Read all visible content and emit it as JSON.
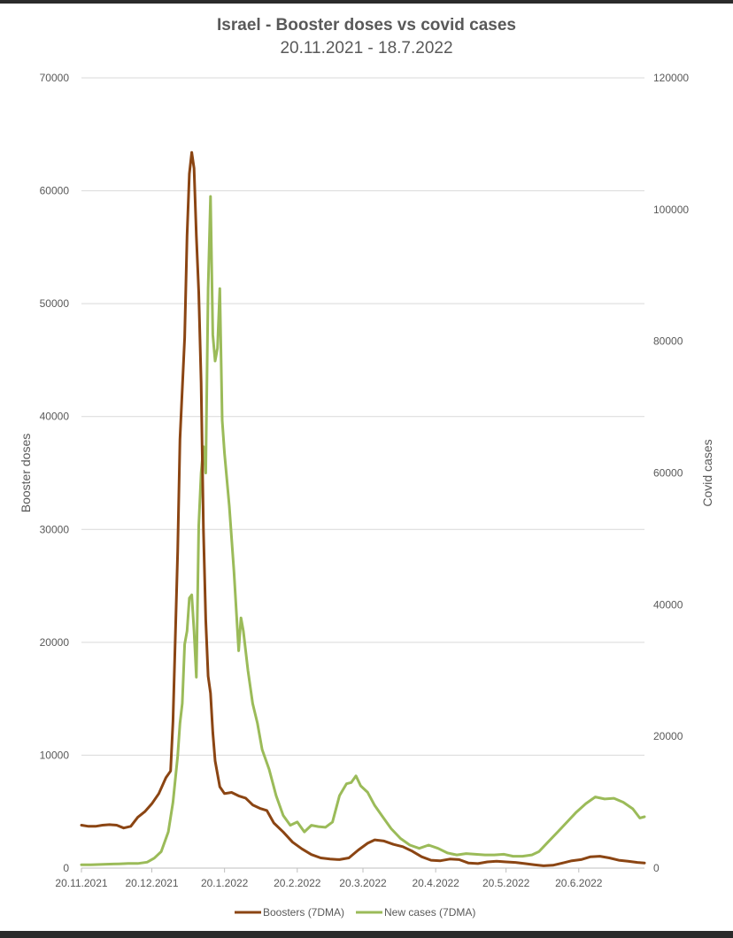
{
  "chart_data": {
    "type": "line",
    "title": "Israel - Booster doses vs covid cases",
    "subtitle": "20.11.2021 - 18.7.2022",
    "ylabel": "Booster doses",
    "y2label": "Covid cases",
    "ylim": [
      0,
      70000
    ],
    "y2lim": [
      0,
      120000
    ],
    "yticks": [
      "0",
      "10000",
      "20000",
      "30000",
      "40000",
      "50000",
      "60000",
      "70000"
    ],
    "y2ticks": [
      "0",
      "20000",
      "40000",
      "60000",
      "80000",
      "100000",
      "120000"
    ],
    "xrange": [
      "2021-11-20",
      "2022-07-18"
    ],
    "xticks": [
      {
        "date": "2021-11-20",
        "label": "20.11.2021"
      },
      {
        "date": "2021-12-20",
        "label": "20.12.2021"
      },
      {
        "date": "2022-01-20",
        "label": "20.1.2022"
      },
      {
        "date": "2022-02-20",
        "label": "20.2.2022"
      },
      {
        "date": "2022-03-20",
        "label": "20.3.2022"
      },
      {
        "date": "2022-04-20",
        "label": "20.4.2022"
      },
      {
        "date": "2022-05-20",
        "label": "20.5.2022"
      },
      {
        "date": "2022-06-20",
        "label": "20.6.2022"
      }
    ],
    "grid": true,
    "legend_position": "bottom",
    "series": [
      {
        "name": "Boosters (7DMA)",
        "axis": "left",
        "color": "#8B4513",
        "points": [
          [
            "2021-11-20",
            3800
          ],
          [
            "2021-11-23",
            3700
          ],
          [
            "2021-11-26",
            3700
          ],
          [
            "2021-11-29",
            3800
          ],
          [
            "2021-12-02",
            3850
          ],
          [
            "2021-12-05",
            3800
          ],
          [
            "2021-12-08",
            3550
          ],
          [
            "2021-12-11",
            3700
          ],
          [
            "2021-12-14",
            4500
          ],
          [
            "2021-12-17",
            5000
          ],
          [
            "2021-12-20",
            5700
          ],
          [
            "2021-12-23",
            6600
          ],
          [
            "2021-12-26",
            8000
          ],
          [
            "2021-12-28",
            8600
          ],
          [
            "2021-12-29",
            13000
          ],
          [
            "2021-12-31",
            28000
          ],
          [
            "2022-01-01",
            38000
          ],
          [
            "2022-01-03",
            47000
          ],
          [
            "2022-01-04",
            56000
          ],
          [
            "2022-01-05",
            61500
          ],
          [
            "2022-01-06",
            63400
          ],
          [
            "2022-01-07",
            62000
          ],
          [
            "2022-01-08",
            56000
          ],
          [
            "2022-01-09",
            51000
          ],
          [
            "2022-01-10",
            43000
          ],
          [
            "2022-01-11",
            30000
          ],
          [
            "2022-01-12",
            22000
          ],
          [
            "2022-01-13",
            17000
          ],
          [
            "2022-01-14",
            15500
          ],
          [
            "2022-01-15",
            12000
          ],
          [
            "2022-01-16",
            9500
          ],
          [
            "2022-01-18",
            7200
          ],
          [
            "2022-01-20",
            6600
          ],
          [
            "2022-01-23",
            6700
          ],
          [
            "2022-01-26",
            6400
          ],
          [
            "2022-01-29",
            6200
          ],
          [
            "2022-02-01",
            5600
          ],
          [
            "2022-02-04",
            5300
          ],
          [
            "2022-02-07",
            5100
          ],
          [
            "2022-02-10",
            4000
          ],
          [
            "2022-02-14",
            3200
          ],
          [
            "2022-02-18",
            2300
          ],
          [
            "2022-02-22",
            1700
          ],
          [
            "2022-02-26",
            1200
          ],
          [
            "2022-03-02",
            900
          ],
          [
            "2022-03-06",
            800
          ],
          [
            "2022-03-10",
            750
          ],
          [
            "2022-03-14",
            900
          ],
          [
            "2022-03-18",
            1600
          ],
          [
            "2022-03-22",
            2200
          ],
          [
            "2022-03-25",
            2500
          ],
          [
            "2022-03-29",
            2400
          ],
          [
            "2022-04-02",
            2100
          ],
          [
            "2022-04-06",
            1900
          ],
          [
            "2022-04-10",
            1500
          ],
          [
            "2022-04-14",
            1000
          ],
          [
            "2022-04-18",
            700
          ],
          [
            "2022-04-22",
            650
          ],
          [
            "2022-04-26",
            800
          ],
          [
            "2022-04-30",
            750
          ],
          [
            "2022-05-04",
            450
          ],
          [
            "2022-05-08",
            400
          ],
          [
            "2022-05-12",
            550
          ],
          [
            "2022-05-16",
            600
          ],
          [
            "2022-05-20",
            550
          ],
          [
            "2022-05-24",
            500
          ],
          [
            "2022-05-28",
            400
          ],
          [
            "2022-06-01",
            300
          ],
          [
            "2022-06-05",
            200
          ],
          [
            "2022-06-09",
            250
          ],
          [
            "2022-06-13",
            450
          ],
          [
            "2022-06-17",
            650
          ],
          [
            "2022-06-21",
            750
          ],
          [
            "2022-06-25",
            1000
          ],
          [
            "2022-06-29",
            1050
          ],
          [
            "2022-07-03",
            900
          ],
          [
            "2022-07-07",
            700
          ],
          [
            "2022-07-11",
            600
          ],
          [
            "2022-07-15",
            500
          ],
          [
            "2022-07-18",
            450
          ]
        ]
      },
      {
        "name": "New cases (7DMA)",
        "axis": "right",
        "color": "#9BBB59",
        "points": [
          [
            "2021-11-20",
            500
          ],
          [
            "2021-11-24",
            500
          ],
          [
            "2021-11-28",
            550
          ],
          [
            "2021-12-02",
            600
          ],
          [
            "2021-12-06",
            650
          ],
          [
            "2021-12-10",
            700
          ],
          [
            "2021-12-14",
            700
          ],
          [
            "2021-12-18",
            900
          ],
          [
            "2021-12-21",
            1500
          ],
          [
            "2021-12-24",
            2500
          ],
          [
            "2021-12-27",
            5500
          ],
          [
            "2021-12-29",
            10000
          ],
          [
            "2021-12-31",
            17000
          ],
          [
            "2022-01-01",
            22000
          ],
          [
            "2022-01-02",
            25000
          ],
          [
            "2022-01-03",
            34000
          ],
          [
            "2022-01-04",
            36000
          ],
          [
            "2022-01-05",
            41000
          ],
          [
            "2022-01-06",
            41500
          ],
          [
            "2022-01-07",
            36000
          ],
          [
            "2022-01-08",
            29000
          ],
          [
            "2022-01-09",
            52000
          ],
          [
            "2022-01-10",
            60000
          ],
          [
            "2022-01-11",
            64000
          ],
          [
            "2022-01-12",
            60000
          ],
          [
            "2022-01-13",
            88000
          ],
          [
            "2022-01-14",
            102000
          ],
          [
            "2022-01-15",
            81000
          ],
          [
            "2022-01-16",
            77000
          ],
          [
            "2022-01-17",
            79000
          ],
          [
            "2022-01-18",
            88000
          ],
          [
            "2022-01-19",
            68000
          ],
          [
            "2022-01-20",
            63000
          ],
          [
            "2022-01-22",
            55000
          ],
          [
            "2022-01-24",
            45000
          ],
          [
            "2022-01-26",
            33000
          ],
          [
            "2022-01-27",
            38000
          ],
          [
            "2022-01-28",
            36000
          ],
          [
            "2022-01-30",
            30000
          ],
          [
            "2022-02-01",
            25000
          ],
          [
            "2022-02-03",
            22000
          ],
          [
            "2022-02-05",
            18000
          ],
          [
            "2022-02-08",
            15000
          ],
          [
            "2022-02-11",
            11000
          ],
          [
            "2022-02-14",
            8000
          ],
          [
            "2022-02-17",
            6500
          ],
          [
            "2022-02-20",
            7000
          ],
          [
            "2022-02-23",
            5500
          ],
          [
            "2022-02-26",
            6500
          ],
          [
            "2022-03-01",
            6300
          ],
          [
            "2022-03-04",
            6200
          ],
          [
            "2022-03-07",
            7000
          ],
          [
            "2022-03-10",
            11000
          ],
          [
            "2022-03-13",
            12800
          ],
          [
            "2022-03-15",
            13000
          ],
          [
            "2022-03-17",
            14000
          ],
          [
            "2022-03-19",
            12500
          ],
          [
            "2022-03-22",
            11500
          ],
          [
            "2022-03-25",
            9500
          ],
          [
            "2022-03-28",
            8000
          ],
          [
            "2022-04-01",
            6000
          ],
          [
            "2022-04-05",
            4500
          ],
          [
            "2022-04-09",
            3500
          ],
          [
            "2022-04-13",
            3000
          ],
          [
            "2022-04-17",
            3500
          ],
          [
            "2022-04-21",
            3000
          ],
          [
            "2022-04-25",
            2300
          ],
          [
            "2022-04-29",
            2000
          ],
          [
            "2022-05-03",
            2200
          ],
          [
            "2022-05-07",
            2100
          ],
          [
            "2022-05-11",
            2000
          ],
          [
            "2022-05-15",
            2000
          ],
          [
            "2022-05-19",
            2100
          ],
          [
            "2022-05-23",
            1800
          ],
          [
            "2022-05-27",
            1800
          ],
          [
            "2022-05-31",
            2000
          ],
          [
            "2022-06-03",
            2500
          ],
          [
            "2022-06-07",
            4000
          ],
          [
            "2022-06-11",
            5500
          ],
          [
            "2022-06-15",
            7000
          ],
          [
            "2022-06-19",
            8500
          ],
          [
            "2022-06-23",
            9800
          ],
          [
            "2022-06-27",
            10800
          ],
          [
            "2022-07-01",
            10500
          ],
          [
            "2022-07-05",
            10600
          ],
          [
            "2022-07-09",
            10000
          ],
          [
            "2022-07-13",
            9000
          ],
          [
            "2022-07-16",
            7600
          ],
          [
            "2022-07-18",
            7800
          ]
        ]
      }
    ]
  }
}
